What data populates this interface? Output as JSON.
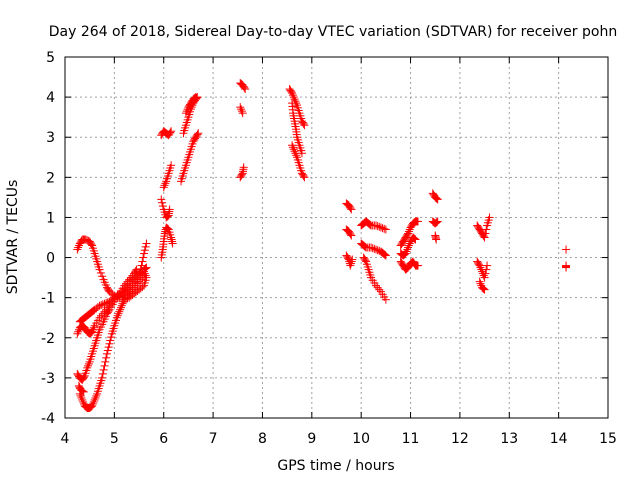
{
  "chart_data": {
    "type": "scatter",
    "title": "Day 264 of 2018, Sidereal Day-to-day VTEC variation (SDTVAR) for receiver pohn",
    "xlabel": "GPS time / hours",
    "ylabel": "SDTVAR / TECUs",
    "xlim": [
      4,
      15
    ],
    "ylim": [
      -4,
      5
    ],
    "x_ticks": [
      "4",
      "5",
      "6",
      "7",
      "8",
      "9",
      "10",
      "11",
      "12",
      "13",
      "14",
      "15"
    ],
    "y_ticks": [
      "-4",
      "-3",
      "-2",
      "-1",
      "0",
      "1",
      "2",
      "3",
      "4",
      "5"
    ],
    "grid": true,
    "marker": "+",
    "marker_color": "#ff0000",
    "segments": [
      [
        [
          4.25,
          0.2
        ],
        [
          4.3,
          0.35
        ],
        [
          4.35,
          0.45
        ],
        [
          4.42,
          0.45
        ],
        [
          4.5,
          0.4
        ],
        [
          4.55,
          0.3
        ],
        [
          4.6,
          0.1
        ],
        [
          4.65,
          -0.1
        ],
        [
          4.7,
          -0.3
        ],
        [
          4.78,
          -0.55
        ],
        [
          4.85,
          -0.75
        ],
        [
          4.9,
          -0.85
        ],
        [
          5.0,
          -0.95
        ],
        [
          5.1,
          -1.0
        ],
        [
          5.2,
          -0.95
        ],
        [
          5.3,
          -0.85
        ],
        [
          5.4,
          -0.7
        ],
        [
          5.5,
          -0.45
        ],
        [
          5.55,
          -0.2
        ],
        [
          5.6,
          0.1
        ],
        [
          5.65,
          0.35
        ]
      ],
      [
        [
          4.3,
          -1.6
        ],
        [
          4.35,
          -1.55
        ],
        [
          4.4,
          -1.5
        ],
        [
          4.45,
          -1.45
        ],
        [
          4.5,
          -1.4
        ],
        [
          4.55,
          -1.35
        ],
        [
          4.6,
          -1.3
        ],
        [
          4.7,
          -1.2
        ],
        [
          4.8,
          -1.15
        ],
        [
          4.9,
          -1.1
        ],
        [
          5.0,
          -1.0
        ],
        [
          5.1,
          -0.9
        ],
        [
          5.2,
          -0.8
        ],
        [
          5.3,
          -0.6
        ],
        [
          5.4,
          -0.5
        ],
        [
          5.5,
          -0.4
        ],
        [
          5.6,
          -0.3
        ],
        [
          5.65,
          -0.25
        ]
      ],
      [
        [
          4.25,
          -1.9
        ],
        [
          4.3,
          -1.75
        ],
        [
          4.35,
          -1.7
        ],
        [
          4.4,
          -1.75
        ],
        [
          4.45,
          -1.85
        ],
        [
          4.5,
          -1.9
        ],
        [
          4.55,
          -1.85
        ],
        [
          4.6,
          -1.7
        ],
        [
          4.7,
          -1.5
        ],
        [
          4.8,
          -1.35
        ],
        [
          4.9,
          -1.2
        ],
        [
          5.0,
          -1.05
        ],
        [
          5.1,
          -0.95
        ],
        [
          5.2,
          -0.85
        ],
        [
          5.3,
          -0.75
        ],
        [
          5.4,
          -0.6
        ],
        [
          5.5,
          -0.45
        ],
        [
          5.6,
          -0.35
        ],
        [
          5.65,
          -0.5
        ],
        [
          5.6,
          -0.7
        ],
        [
          5.5,
          -0.8
        ],
        [
          5.4,
          -0.9
        ],
        [
          5.3,
          -1.0
        ],
        [
          5.2,
          -1.05
        ]
      ],
      [
        [
          4.25,
          -2.9
        ],
        [
          4.3,
          -3.0
        ],
        [
          4.35,
          -3.05
        ],
        [
          4.4,
          -2.95
        ],
        [
          4.45,
          -2.75
        ],
        [
          4.5,
          -2.6
        ],
        [
          4.55,
          -2.4
        ],
        [
          4.6,
          -2.2
        ],
        [
          4.65,
          -2.0
        ],
        [
          4.7,
          -1.8
        ],
        [
          4.78,
          -1.6
        ],
        [
          4.85,
          -1.4
        ],
        [
          4.9,
          -1.3
        ],
        [
          5.0,
          -1.1
        ],
        [
          5.1,
          -0.9
        ],
        [
          5.2,
          -0.7
        ],
        [
          5.3,
          -0.55
        ],
        [
          5.4,
          -0.4
        ],
        [
          5.45,
          -0.3
        ]
      ],
      [
        [
          4.3,
          -3.4
        ],
        [
          4.35,
          -3.55
        ],
        [
          4.4,
          -3.7
        ],
        [
          4.45,
          -3.75
        ],
        [
          4.5,
          -3.75
        ],
        [
          4.55,
          -3.7
        ],
        [
          4.6,
          -3.55
        ],
        [
          4.65,
          -3.4
        ],
        [
          4.7,
          -3.2
        ],
        [
          4.75,
          -3.0
        ],
        [
          4.8,
          -2.7
        ],
        [
          4.85,
          -2.4
        ],
        [
          4.9,
          -2.15
        ],
        [
          4.95,
          -1.9
        ],
        [
          5.0,
          -1.7
        ],
        [
          5.05,
          -1.5
        ],
        [
          5.1,
          -1.35
        ],
        [
          5.15,
          -1.2
        ],
        [
          5.2,
          -1.05
        ],
        [
          5.3,
          -0.9
        ],
        [
          5.4,
          -0.75
        ],
        [
          5.5,
          -0.6
        ],
        [
          5.6,
          -0.45
        ]
      ],
      [
        [
          4.28,
          -3.2
        ],
        [
          4.32,
          -3.3
        ],
        [
          4.38,
          -3.35
        ]
      ],
      [
        [
          5.95,
          0.0
        ],
        [
          5.98,
          0.2
        ],
        [
          6.0,
          0.4
        ],
        [
          6.02,
          0.6
        ],
        [
          6.05,
          0.75
        ],
        [
          6.1,
          0.7
        ],
        [
          6.15,
          0.5
        ],
        [
          6.18,
          0.35
        ]
      ],
      [
        [
          5.95,
          1.45
        ],
        [
          6.0,
          1.2
        ],
        [
          6.05,
          1.0
        ],
        [
          6.1,
          1.05
        ],
        [
          6.12,
          1.2
        ]
      ],
      [
        [
          6.0,
          1.75
        ],
        [
          6.05,
          1.9
        ],
        [
          6.1,
          2.1
        ],
        [
          6.15,
          2.3
        ]
      ],
      [
        [
          5.95,
          3.05
        ],
        [
          6.0,
          3.15
        ],
        [
          6.05,
          3.1
        ],
        [
          6.1,
          3.05
        ],
        [
          6.15,
          3.15
        ]
      ],
      [
        [
          6.35,
          1.9
        ],
        [
          6.4,
          2.1
        ],
        [
          6.45,
          2.3
        ],
        [
          6.5,
          2.5
        ],
        [
          6.55,
          2.7
        ],
        [
          6.6,
          2.9
        ],
        [
          6.65,
          3.0
        ],
        [
          6.7,
          3.1
        ]
      ],
      [
        [
          6.4,
          3.1
        ],
        [
          6.45,
          3.3
        ],
        [
          6.5,
          3.5
        ],
        [
          6.55,
          3.7
        ],
        [
          6.6,
          3.85
        ],
        [
          6.65,
          3.95
        ],
        [
          6.68,
          4.0
        ]
      ],
      [
        [
          6.45,
          3.6
        ],
        [
          6.5,
          3.75
        ],
        [
          6.55,
          3.85
        ],
        [
          6.6,
          3.95
        ],
        [
          6.65,
          4.0
        ]
      ],
      [
        [
          7.55,
          4.35
        ],
        [
          7.6,
          4.3
        ],
        [
          7.65,
          4.2
        ]
      ],
      [
        [
          7.55,
          3.75
        ],
        [
          7.6,
          3.6
        ]
      ],
      [
        [
          7.55,
          2.0
        ],
        [
          7.6,
          2.1
        ],
        [
          7.62,
          2.25
        ]
      ],
      [
        [
          8.55,
          4.2
        ],
        [
          8.6,
          4.1
        ],
        [
          8.65,
          3.95
        ],
        [
          8.7,
          3.8
        ],
        [
          8.75,
          3.6
        ],
        [
          8.8,
          3.4
        ],
        [
          8.85,
          3.3
        ]
      ],
      [
        [
          8.6,
          3.85
        ],
        [
          8.62,
          3.6
        ],
        [
          8.65,
          3.4
        ],
        [
          8.68,
          3.2
        ],
        [
          8.7,
          3.0
        ],
        [
          8.75,
          2.8
        ],
        [
          8.8,
          2.6
        ]
      ],
      [
        [
          8.6,
          2.8
        ],
        [
          8.65,
          2.65
        ],
        [
          8.7,
          2.5
        ],
        [
          8.75,
          2.3
        ],
        [
          8.8,
          2.1
        ],
        [
          8.85,
          2.0
        ]
      ],
      [
        [
          9.7,
          1.35
        ],
        [
          9.75,
          1.3
        ],
        [
          9.8,
          1.2
        ]
      ],
      [
        [
          9.7,
          0.7
        ],
        [
          9.75,
          0.65
        ],
        [
          9.8,
          0.55
        ]
      ],
      [
        [
          9.7,
          0.05
        ],
        [
          9.75,
          -0.05
        ],
        [
          9.78,
          -0.2
        ],
        [
          9.82,
          -0.05
        ]
      ],
      [
        [
          10.0,
          0.8
        ],
        [
          10.05,
          0.85
        ],
        [
          10.1,
          0.9
        ],
        [
          10.15,
          0.85
        ],
        [
          10.2,
          0.8
        ],
        [
          10.3,
          0.8
        ],
        [
          10.4,
          0.75
        ],
        [
          10.5,
          0.7
        ]
      ],
      [
        [
          10.0,
          0.35
        ],
        [
          10.05,
          0.3
        ],
        [
          10.1,
          0.25
        ],
        [
          10.2,
          0.25
        ],
        [
          10.3,
          0.2
        ],
        [
          10.4,
          0.15
        ],
        [
          10.45,
          0.1
        ],
        [
          10.5,
          0.05
        ]
      ],
      [
        [
          10.05,
          0.0
        ],
        [
          10.1,
          -0.1
        ],
        [
          10.15,
          -0.3
        ],
        [
          10.2,
          -0.5
        ],
        [
          10.3,
          -0.7
        ],
        [
          10.4,
          -0.85
        ],
        [
          10.5,
          -1.05
        ]
      ],
      [
        [
          10.8,
          -0.1
        ],
        [
          10.85,
          -0.2
        ],
        [
          10.9,
          -0.3
        ],
        [
          10.95,
          -0.25
        ],
        [
          11.0,
          -0.15
        ],
        [
          11.05,
          -0.1
        ],
        [
          11.1,
          -0.2
        ],
        [
          11.15,
          -0.2
        ]
      ],
      [
        [
          10.8,
          0.3
        ],
        [
          10.85,
          0.4
        ],
        [
          10.9,
          0.5
        ],
        [
          10.95,
          0.6
        ],
        [
          11.0,
          0.75
        ],
        [
          11.05,
          0.85
        ],
        [
          11.1,
          0.9
        ],
        [
          11.15,
          0.9
        ]
      ],
      [
        [
          10.8,
          0.1
        ],
        [
          10.85,
          0.05
        ],
        [
          10.9,
          0.1
        ],
        [
          10.95,
          0.25
        ],
        [
          11.0,
          0.4
        ],
        [
          11.05,
          0.5
        ],
        [
          11.1,
          0.45
        ]
      ],
      [
        [
          11.45,
          1.6
        ],
        [
          11.5,
          1.5
        ],
        [
          11.55,
          1.45
        ]
      ],
      [
        [
          11.45,
          0.9
        ],
        [
          11.5,
          0.85
        ],
        [
          11.55,
          0.9
        ]
      ],
      [
        [
          11.5,
          0.55
        ],
        [
          11.52,
          0.45
        ]
      ],
      [
        [
          12.35,
          0.8
        ],
        [
          12.4,
          0.7
        ],
        [
          12.45,
          0.6
        ],
        [
          12.5,
          0.5
        ],
        [
          12.55,
          0.8
        ],
        [
          12.6,
          1.0
        ]
      ],
      [
        [
          12.35,
          -0.1
        ],
        [
          12.4,
          -0.2
        ],
        [
          12.45,
          -0.35
        ],
        [
          12.5,
          -0.5
        ],
        [
          12.55,
          -0.2
        ]
      ],
      [
        [
          12.4,
          -0.6
        ],
        [
          12.45,
          -0.75
        ],
        [
          12.5,
          -0.8
        ]
      ],
      [
        [
          14.15,
          0.2
        ]
      ],
      [
        [
          14.15,
          -0.2
        ],
        [
          14.15,
          -0.25
        ]
      ]
    ]
  }
}
